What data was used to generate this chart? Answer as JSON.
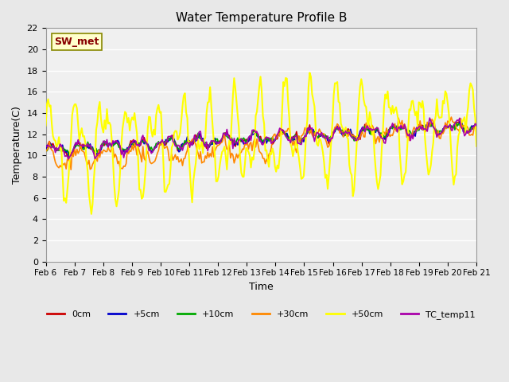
{
  "title": "Water Temperature Profile B",
  "xlabel": "Time",
  "ylabel": "Temperature(C)",
  "ylim": [
    0,
    22
  ],
  "yticks": [
    0,
    2,
    4,
    6,
    8,
    10,
    12,
    14,
    16,
    18,
    20,
    22
  ],
  "x_labels": [
    "Feb 6",
    "Feb 7",
    "Feb 8",
    "Feb 9",
    "Feb 10",
    "Feb 11",
    "Feb 12",
    "Feb 13",
    "Feb 14",
    "Feb 15",
    "Feb 16",
    "Feb 17",
    "Feb 18",
    "Feb 19",
    "Feb 20",
    "Feb 21"
  ],
  "sw_met_label": "SW_met",
  "legend_entries": [
    "0cm",
    "+5cm",
    "+10cm",
    "+30cm",
    "+50cm",
    "TC_temp11"
  ],
  "line_colors": [
    "#cc0000",
    "#0000cc",
    "#00aa00",
    "#ff8800",
    "#ffff00",
    "#aa00aa"
  ],
  "line_widths": [
    1.2,
    1.2,
    1.2,
    1.2,
    1.5,
    1.2
  ],
  "background_color": "#e8e8e8",
  "plot_bg_color": "#f0f0f0",
  "grid_color": "#ffffff",
  "num_points": 360,
  "days": 15
}
